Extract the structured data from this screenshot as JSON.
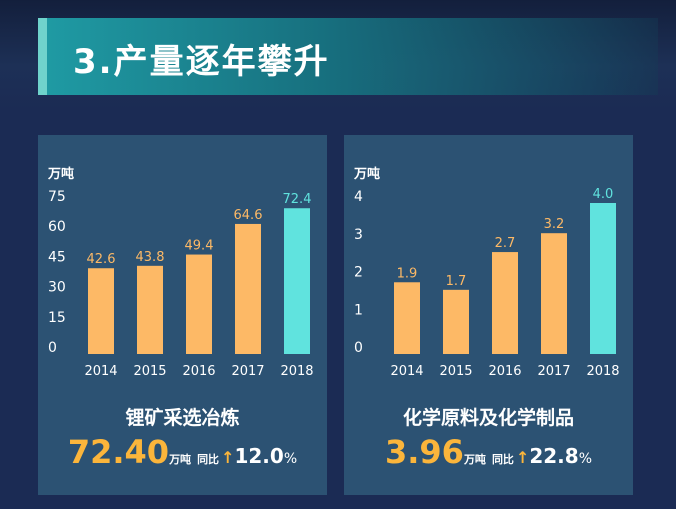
{
  "header": {
    "title": "3.产量逐年攀升"
  },
  "colors": {
    "bar": "#fdb966",
    "highlight": "#60e3de",
    "axis_text": "#ffffff",
    "label_bar": "#fdb966",
    "label_highlight": "#60e3de"
  },
  "chart_data": [
    {
      "type": "bar",
      "title": "锂矿采选冶炼",
      "ylabel": "万吨",
      "categories": [
        "2014",
        "2015",
        "2016",
        "2017",
        "2018"
      ],
      "values": [
        42.6,
        43.8,
        49.4,
        64.6,
        72.4
      ],
      "value_labels": [
        "42.6",
        "43.8",
        "49.4",
        "64.6",
        "72.4"
      ],
      "yticks": [
        "0",
        "15",
        "30",
        "45",
        "60",
        "75"
      ],
      "ytick_values": [
        0,
        15,
        30,
        45,
        60,
        75
      ],
      "ylim": [
        0,
        75
      ],
      "highlight_index": 4,
      "grid": false,
      "summary": {
        "value": "72.40",
        "unit": "万吨",
        "yoy_label": "同比",
        "yoy_value": "12.0",
        "yoy_unit": "%"
      }
    },
    {
      "type": "bar",
      "title": "化学原料及化学制品",
      "ylabel": "万吨",
      "categories": [
        "2014",
        "2015",
        "2016",
        "2017",
        "2018"
      ],
      "values": [
        1.9,
        1.7,
        2.7,
        3.2,
        4.0
      ],
      "value_labels": [
        "1.9",
        "1.7",
        "2.7",
        "3.2",
        "4.0"
      ],
      "yticks": [
        "0",
        "1",
        "2",
        "3",
        "4"
      ],
      "ytick_values": [
        0,
        1,
        2,
        3,
        4
      ],
      "ylim": [
        0,
        4
      ],
      "highlight_index": 4,
      "grid": false,
      "summary": {
        "value": "3.96",
        "unit": "万吨",
        "yoy_label": "同比",
        "yoy_value": "22.8",
        "yoy_unit": "%"
      }
    }
  ]
}
